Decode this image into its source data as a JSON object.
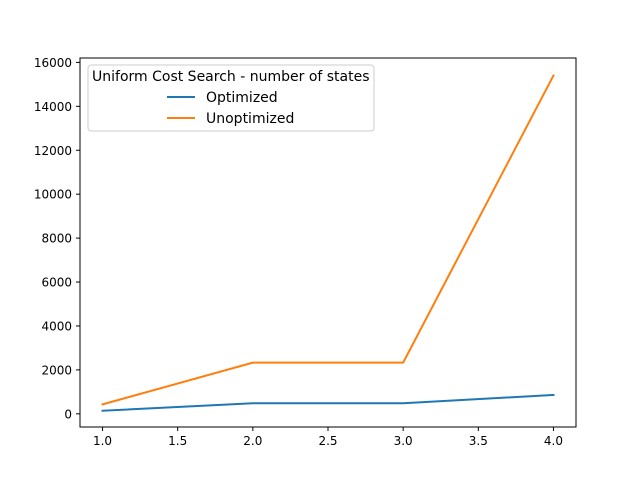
{
  "chart_data": {
    "type": "line",
    "title": "",
    "xlabel": "",
    "ylabel": "",
    "xlim": [
      0.85,
      4.15
    ],
    "ylim": [
      -600,
      16200
    ],
    "xticks": [
      1.0,
      1.5,
      2.0,
      2.5,
      3.0,
      3.5,
      4.0
    ],
    "xtick_labels": [
      "1.0",
      "1.5",
      "2.0",
      "2.5",
      "3.0",
      "3.5",
      "4.0"
    ],
    "yticks": [
      0,
      2000,
      4000,
      6000,
      8000,
      10000,
      12000,
      14000,
      16000
    ],
    "ytick_labels": [
      "0",
      "2000",
      "4000",
      "6000",
      "8000",
      "10000",
      "12000",
      "14000",
      "16000"
    ],
    "x": [
      1,
      2,
      3,
      4
    ],
    "series": [
      {
        "name": "Optimized",
        "values": [
          140,
          480,
          480,
          860
        ],
        "color": "#1f77b4"
      },
      {
        "name": "Unoptimized",
        "values": [
          430,
          2330,
          2330,
          15400
        ],
        "color": "#ff7f0e"
      }
    ],
    "legend": {
      "title": "Uniform Cost Search - number of states",
      "location": "upper-left"
    },
    "grid": false
  }
}
